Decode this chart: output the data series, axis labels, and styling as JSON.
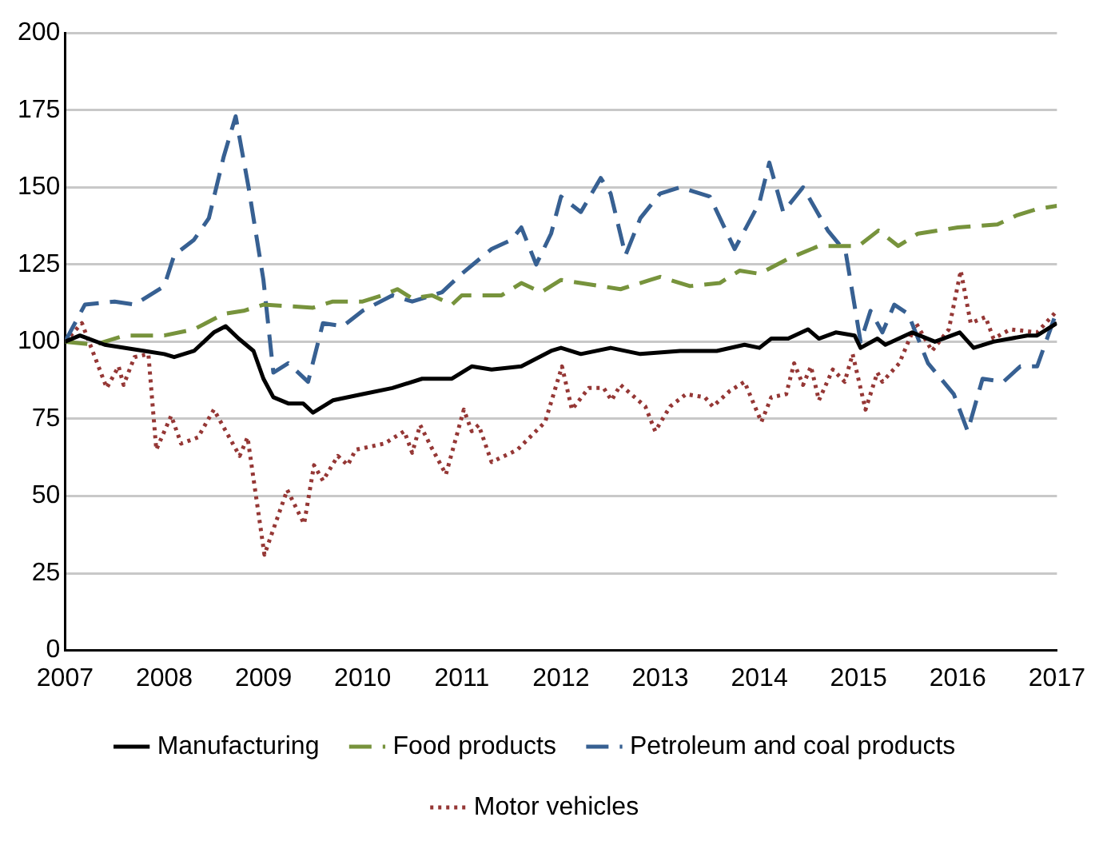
{
  "chart_data": {
    "type": "line",
    "xlim": [
      2007,
      2017
    ],
    "xticks": [
      2007,
      2008,
      2009,
      2010,
      2011,
      2012,
      2013,
      2014,
      2015,
      2016,
      2017
    ],
    "ylim": [
      0,
      200
    ],
    "yticks": [
      0,
      25,
      50,
      75,
      100,
      125,
      150,
      175,
      200
    ],
    "grid": "y",
    "legend": "bottom",
    "marker": "none",
    "series": [
      {
        "name": "Manufacturing",
        "color": "#000000",
        "line_style": "solid",
        "x": [
          2007,
          2007.15,
          2007.4,
          2007.8,
          2008.0,
          2008.1,
          2008.3,
          2008.5,
          2008.62,
          2008.75,
          2008.9,
          2009.0,
          2009.1,
          2009.25,
          2009.4,
          2009.5,
          2009.7,
          2010.0,
          2010.3,
          2010.6,
          2010.9,
          2011.1,
          2011.3,
          2011.6,
          2011.9,
          2012.0,
          2012.2,
          2012.5,
          2012.8,
          2013.2,
          2013.57,
          2013.85,
          2014.0,
          2014.12,
          2014.29,
          2014.49,
          2014.6,
          2014.77,
          2014.96,
          2015.02,
          2015.19,
          2015.27,
          2015.54,
          2015.77,
          2016.02,
          2016.16,
          2016.36,
          2016.7,
          2016.8,
          2017
        ],
        "values": [
          100,
          102,
          99,
          97,
          96,
          95,
          97,
          103,
          105,
          101,
          97,
          88,
          82,
          80,
          80,
          77,
          81,
          83,
          85,
          88,
          88,
          92,
          91,
          92,
          97,
          98,
          96,
          98,
          96,
          97,
          97,
          99,
          98,
          101,
          101,
          104,
          101,
          103,
          102,
          98,
          101,
          99,
          103,
          100,
          103,
          98,
          100,
          102,
          102,
          106
        ]
      },
      {
        "name": "Food products",
        "color": "#77933c",
        "line_style": "dashed",
        "x": [
          2007,
          2007.3,
          2007.6,
          2008,
          2008.3,
          2008.6,
          2008.8,
          2009,
          2009.5,
          2009.7,
          2010,
          2010.2,
          2010.35,
          2010.5,
          2010.7,
          2010.9,
          2011,
          2011.4,
          2011.6,
          2011.8,
          2012,
          2012.4,
          2012.6,
          2012.9,
          2013,
          2013.3,
          2013.6,
          2013.8,
          2014,
          2014.3,
          2014.6,
          2014.9,
          2015,
          2015.2,
          2015.4,
          2015.6,
          2016,
          2016.4,
          2016.6,
          2016.8,
          2017
        ],
        "values": [
          100,
          99,
          102,
          102,
          104,
          109,
          110,
          112,
          111,
          113,
          113,
          115,
          117,
          114,
          115,
          112,
          115,
          115,
          119,
          116,
          120,
          118,
          117,
          120,
          121,
          118,
          119,
          123,
          122,
          127,
          131,
          131,
          131,
          136,
          131,
          135,
          137,
          138,
          141,
          143,
          144
        ]
      },
      {
        "name": "Petroleum and coal products",
        "color": "#376092",
        "line_style": "dashed",
        "x": [
          2007,
          2007.2,
          2007.5,
          2007.7,
          2008,
          2008.1,
          2008.3,
          2008.45,
          2008.6,
          2008.72,
          2008.85,
          2009.0,
          2009.1,
          2009.25,
          2009.45,
          2009.6,
          2009.8,
          2010,
          2010.3,
          2010.5,
          2010.8,
          2011,
          2011.3,
          2011.5,
          2011.6,
          2011.75,
          2011.9,
          2012.0,
          2012.2,
          2012.4,
          2012.5,
          2012.65,
          2012.8,
          2013,
          2013.2,
          2013.5,
          2013.75,
          2014,
          2014.1,
          2014.24,
          2014.44,
          2014.69,
          2014.87,
          2015.02,
          2015.12,
          2015.24,
          2015.36,
          2015.5,
          2015.7,
          2015.96,
          2016.1,
          2016.25,
          2016.46,
          2016.63,
          2016.8,
          2017
        ],
        "values": [
          100,
          112,
          113,
          112,
          118,
          128,
          133,
          140,
          160,
          173,
          150,
          120,
          90,
          93,
          87,
          106,
          105,
          110,
          115,
          113,
          116,
          122,
          130,
          133,
          137,
          125,
          135,
          147,
          142,
          153,
          148,
          128,
          140,
          148,
          150,
          147,
          130,
          145,
          158,
          142,
          150,
          136,
          129,
          100,
          110,
          103,
          112,
          109,
          93,
          83,
          71,
          88,
          87,
          92,
          92,
          110
        ]
      },
      {
        "name": "Motor vehicles",
        "color": "#953735",
        "line_style": "dotted",
        "x": [
          2007,
          2007.17,
          2007.42,
          2007.54,
          2007.59,
          2007.7,
          2007.84,
          2007.92,
          2008.07,
          2008.17,
          2008.34,
          2008.5,
          2008.76,
          2008.84,
          2009.01,
          2009.24,
          2009.41,
          2009.51,
          2009.6,
          2009.75,
          2009.85,
          2009.93,
          2010.22,
          2010.42,
          2010.5,
          2010.58,
          2010.69,
          2010.84,
          2011.02,
          2011.1,
          2011.17,
          2011.3,
          2011.56,
          2011.84,
          2012.01,
          2012.11,
          2012.28,
          2012.43,
          2012.51,
          2012.6,
          2012.85,
          2012.95,
          2013.1,
          2013.26,
          2013.45,
          2013.53,
          2013.7,
          2013.85,
          2014.02,
          2014.12,
          2014.27,
          2014.35,
          2014.44,
          2014.52,
          2014.6,
          2014.74,
          2014.86,
          2014.94,
          2015.07,
          2015.19,
          2015.24,
          2015.41,
          2015.58,
          2015.74,
          2015.91,
          2016.03,
          2016.13,
          2016.28,
          2016.36,
          2016.53,
          2016.8,
          2017
        ],
        "values": [
          100,
          106,
          85,
          92,
          86,
          95,
          96,
          65,
          76,
          67,
          69,
          78,
          63,
          69,
          31,
          52,
          41,
          60,
          55,
          63,
          60,
          65,
          67,
          71,
          64,
          73,
          66,
          57,
          78,
          71,
          73,
          61,
          65,
          74,
          92,
          78,
          85,
          85,
          81,
          86,
          79,
          71,
          79,
          83,
          82,
          79,
          84,
          87,
          74,
          82,
          83,
          93,
          86,
          92,
          81,
          91,
          87,
          96,
          78,
          90,
          87,
          93,
          106,
          97,
          104,
          123,
          106,
          108,
          101,
          104,
          103,
          110
        ]
      }
    ]
  }
}
